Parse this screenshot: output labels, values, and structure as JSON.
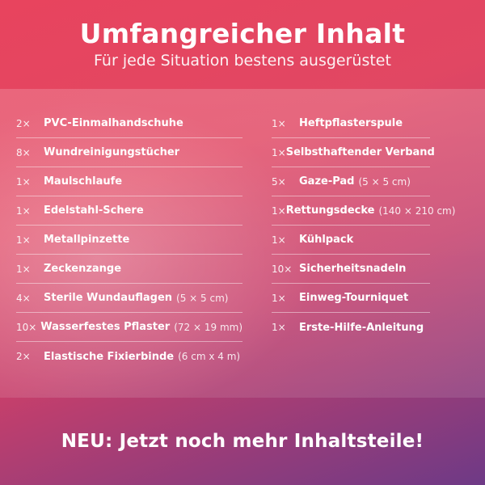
{
  "header": {
    "title": "Umfangreicher Inhalt",
    "subtitle": "Für jede Situation bestens ausgerüstet"
  },
  "left_items": [
    {
      "qty": "2×",
      "name": "PVC-Einmalhandschuhe",
      "note": ""
    },
    {
      "qty": "8×",
      "name": "Wundreinigungstücher",
      "note": ""
    },
    {
      "qty": "1×",
      "name": "Maulschlaufe",
      "note": ""
    },
    {
      "qty": "1×",
      "name": "Edelstahl-Schere",
      "note": ""
    },
    {
      "qty": "1×",
      "name": "Metallpinzette",
      "note": ""
    },
    {
      "qty": "1×",
      "name": "Zeckenzange",
      "note": ""
    },
    {
      "qty": "4×",
      "name": "Sterile Wundauflagen",
      "note": "(5 × 5 cm)"
    },
    {
      "qty": "10×",
      "name": "Wasserfestes Pflaster",
      "note": "(72 × 19 mm)"
    },
    {
      "qty": "2×",
      "name": "Elastische Fixierbinde",
      "note": "(6 cm x 4 m)"
    }
  ],
  "right_items": [
    {
      "qty": "1×",
      "name": "Heftpflasterspule",
      "note": ""
    },
    {
      "qty": "1×",
      "name": "Selbsthaftender Verband",
      "note": ""
    },
    {
      "qty": "5×",
      "name": "Gaze-Pad",
      "note": "(5 × 5 cm)"
    },
    {
      "qty": "1×",
      "name": "Rettungsdecke",
      "note": "(140 × 210 cm)"
    },
    {
      "qty": "1×",
      "name": "Kühlpack",
      "note": ""
    },
    {
      "qty": "10×",
      "name": "Sicherheitsnadeln",
      "note": ""
    },
    {
      "qty": "1×",
      "name": "Einweg-Tourniquet",
      "note": ""
    },
    {
      "qty": "1×",
      "name": "Erste-Hilfe-Anleitung",
      "note": ""
    }
  ],
  "footer": {
    "text": "NEU: Jetzt noch mehr Inhaltsteile!"
  },
  "colors": {
    "gradient_top": "#e8445e",
    "gradient_bottom": "#6e3a86",
    "text": "#ffffff"
  }
}
